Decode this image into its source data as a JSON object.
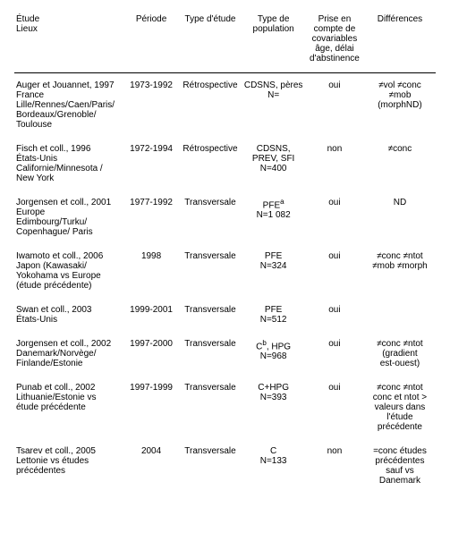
{
  "headers": {
    "col1_line1": "Étude",
    "col1_line2": "Lieux",
    "col2": "Période",
    "col3": "Type d'étude",
    "col4_line1": "Type de",
    "col4_line2": "population",
    "col5_line1": "Prise en",
    "col5_line2": "compte de",
    "col5_line3": "covariables",
    "col5_line4": "âge, délai",
    "col5_line5": "d'abstinence",
    "col6": "Différences"
  },
  "rows": [
    {
      "study_l1": "Auger et Jouannet, 1997",
      "study_l2": "France",
      "study_l3": "Lille/Rennes/Caen/Paris/",
      "study_l4": "Bordeaux/Grenoble/",
      "study_l5": "Toulouse",
      "period": "1973-1992",
      "type": "Rétrospective",
      "pop_l1": "CDSNS, pères",
      "pop_l2": "N=",
      "covar": "oui",
      "diff_l1": "≠vol ≠conc",
      "diff_l2": "≠mob",
      "diff_l3": "(morphND)"
    },
    {
      "study_l1": "Fisch et coll., 1996",
      "study_l2": "États-Unis",
      "study_l3": "Californie/Minnesota /",
      "study_l4": "New York",
      "study_l5": "",
      "period": "1972-1994",
      "type": "Rétrospective",
      "pop_l1": "CDSNS,",
      "pop_l2": "PREV, SFI",
      "pop_l3": "N=400",
      "covar": "non",
      "diff_l1": "≠conc"
    },
    {
      "study_l1": "Jorgensen et coll., 2001",
      "study_l2": "Europe",
      "study_l3": "Edimbourg/Turku/",
      "study_l4": "Copenhague/ Paris",
      "study_l5": "",
      "period": "1977-1992",
      "type": "Transversale",
      "pop_l1_html": "PFE<sup>a</sup>",
      "pop_l2": "N=1 082",
      "covar": "oui",
      "diff_l1": "ND"
    },
    {
      "study_l1": "Iwamoto et coll., 2006",
      "study_l2": "Japon (Kawasaki/",
      "study_l3": "Yokohama vs Europe",
      "study_l4": "(étude précédente)",
      "study_l5": "",
      "period": "1998",
      "type": "Transversale",
      "pop_l1": "PFE",
      "pop_l2": "N=324",
      "covar": "oui",
      "diff_l1": "≠conc ≠ntot",
      "diff_l2": "≠mob ≠morph"
    },
    {
      "study_l1": "Swan et coll., 2003",
      "study_l2": "États-Unis",
      "study_l3": "",
      "study_l4": "",
      "study_l5": "",
      "period": "1999-2001",
      "type": "Transversale",
      "pop_l1": "PFE",
      "pop_l2": "N=512",
      "covar": "oui",
      "diff_l1": ""
    },
    {
      "study_l1": "Jorgensen et coll., 2002",
      "study_l2": "Danemark/Norvège/",
      "study_l3": "Finlande/Estonie",
      "study_l4": "",
      "study_l5": "",
      "period": "1997-2000",
      "type": "Transversale",
      "pop_l1_html": "C<sup>b</sup>, HPG",
      "pop_l2": "N=968",
      "covar": "oui",
      "diff_l1": "≠conc ≠ntot",
      "diff_l2": "(gradient",
      "diff_l3": "est-ouest)"
    },
    {
      "study_l1": "Punab et coll., 2002",
      "study_l2": "Lithuanie/Estonie vs",
      "study_l3": "étude précédente",
      "study_l4": "",
      "study_l5": "",
      "period": "1997-1999",
      "type": "Transversale",
      "pop_l1": "C+HPG",
      "pop_l2": "N=393",
      "covar": "oui",
      "diff_l1": "≠conc ≠ntot",
      "diff_l2": "conc et ntot >",
      "diff_l3": "valeurs dans",
      "diff_l4": "l'étude",
      "diff_l5": "précédente"
    },
    {
      "study_l1": "Tsarev et coll., 2005",
      "study_l2": "Lettonie vs études",
      "study_l3": "précédentes",
      "study_l4": "",
      "study_l5": "",
      "period": "2004",
      "type": "Transversale",
      "pop_l1": "C",
      "pop_l2": "N=133",
      "covar": "non",
      "diff_l1": "=conc études",
      "diff_l2": "précédentes",
      "diff_l3": "sauf vs",
      "diff_l4": "Danemark"
    }
  ]
}
